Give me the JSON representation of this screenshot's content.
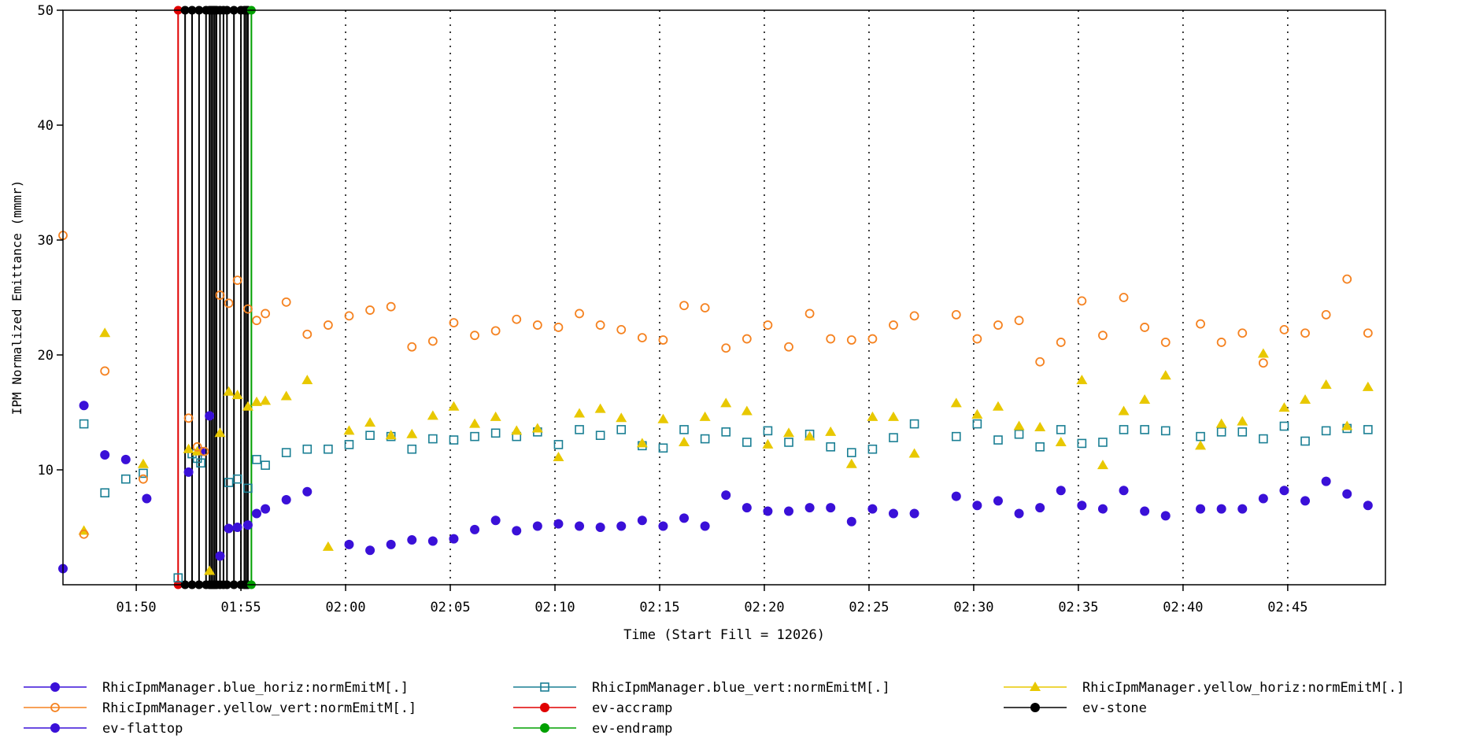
{
  "chart_data": {
    "type": "scatter",
    "ylabel": "IPM Normalized Emittance (mmmr)",
    "xlabel": "Time (Start Fill = 12026)",
    "ylim": [
      0,
      50
    ],
    "xlim": [
      "01:46:30",
      "02:49:40"
    ],
    "yticks": [
      10,
      20,
      30,
      40,
      50
    ],
    "xticks": [
      "01:50",
      "01:55",
      "02:00",
      "02:05",
      "02:10",
      "02:15",
      "02:20",
      "02:25",
      "02:30",
      "02:35",
      "02:40",
      "02:45"
    ],
    "grid": "vertical dotted",
    "legend_position": "bottom",
    "series": [
      {
        "name": "RhicIpmManager.blue_horiz:normEmitM[.]",
        "color": "#3a10d8",
        "marker": "filled-circle",
        "points": [
          [
            "01:46:30",
            1.4
          ],
          [
            "01:47:30",
            15.6
          ],
          [
            "01:48:30",
            11.3
          ],
          [
            "01:49:30",
            10.9
          ],
          [
            "01:50:30",
            7.5
          ],
          [
            "01:52:30",
            9.8
          ],
          [
            "01:53:05",
            11.6
          ],
          [
            "01:53:30",
            14.7
          ],
          [
            "01:54:00",
            2.5
          ],
          [
            "01:54:25",
            4.9
          ],
          [
            "01:54:50",
            5.0
          ],
          [
            "01:55:20",
            5.2
          ],
          [
            "01:55:45",
            6.2
          ],
          [
            "01:56:10",
            6.6
          ],
          [
            "01:57:10",
            7.4
          ],
          [
            "01:58:10",
            8.1
          ],
          [
            "02:00:10",
            3.5
          ],
          [
            "02:01:10",
            3.0
          ],
          [
            "02:02:10",
            3.5
          ],
          [
            "02:03:10",
            3.9
          ],
          [
            "02:04:10",
            3.8
          ],
          [
            "02:05:10",
            4.0
          ],
          [
            "02:06:10",
            4.8
          ],
          [
            "02:07:10",
            5.6
          ],
          [
            "02:08:10",
            4.7
          ],
          [
            "02:09:10",
            5.1
          ],
          [
            "02:10:10",
            5.3
          ],
          [
            "02:11:10",
            5.1
          ],
          [
            "02:12:10",
            5.0
          ],
          [
            "02:13:10",
            5.1
          ],
          [
            "02:14:10",
            5.6
          ],
          [
            "02:15:10",
            5.1
          ],
          [
            "02:16:10",
            5.8
          ],
          [
            "02:17:10",
            5.1
          ],
          [
            "02:18:10",
            7.8
          ],
          [
            "02:19:10",
            6.7
          ],
          [
            "02:20:10",
            6.4
          ],
          [
            "02:21:10",
            6.4
          ],
          [
            "02:22:10",
            6.7
          ],
          [
            "02:23:10",
            6.7
          ],
          [
            "02:24:10",
            5.5
          ],
          [
            "02:25:10",
            6.6
          ],
          [
            "02:26:10",
            6.2
          ],
          [
            "02:27:10",
            6.2
          ],
          [
            "02:29:10",
            7.7
          ],
          [
            "02:30:10",
            6.9
          ],
          [
            "02:31:10",
            7.3
          ],
          [
            "02:32:10",
            6.2
          ],
          [
            "02:33:10",
            6.7
          ],
          [
            "02:34:10",
            8.2
          ],
          [
            "02:35:10",
            6.9
          ],
          [
            "02:36:10",
            6.6
          ],
          [
            "02:37:10",
            8.2
          ],
          [
            "02:38:10",
            6.4
          ],
          [
            "02:39:10",
            6.0
          ],
          [
            "02:40:50",
            6.6
          ],
          [
            "02:41:50",
            6.6
          ],
          [
            "02:42:50",
            6.6
          ],
          [
            "02:43:50",
            7.5
          ],
          [
            "02:44:50",
            8.2
          ],
          [
            "02:45:50",
            7.3
          ],
          [
            "02:46:50",
            9.0
          ],
          [
            "02:47:50",
            7.9
          ],
          [
            "02:48:50",
            6.9
          ]
        ]
      },
      {
        "name": "RhicIpmManager.blue_vert:normEmitM[.]",
        "color": "#1a7f94",
        "marker": "open-square",
        "points": [
          [
            "01:47:30",
            14.0
          ],
          [
            "01:48:30",
            8.0
          ],
          [
            "01:49:30",
            9.2
          ],
          [
            "01:50:20",
            9.7
          ],
          [
            "01:52:00",
            0.6
          ],
          [
            "01:52:40",
            11.4
          ],
          [
            "01:52:55",
            11.0
          ],
          [
            "01:53:05",
            10.6
          ],
          [
            "01:54:25",
            8.9
          ],
          [
            "01:54:50",
            9.2
          ],
          [
            "01:55:20",
            8.4
          ],
          [
            "01:55:45",
            10.9
          ],
          [
            "01:56:10",
            10.4
          ],
          [
            "01:57:10",
            11.5
          ],
          [
            "01:58:10",
            11.8
          ],
          [
            "01:59:10",
            11.8
          ],
          [
            "02:00:10",
            12.2
          ],
          [
            "02:01:10",
            13.0
          ],
          [
            "02:02:10",
            12.9
          ],
          [
            "02:03:10",
            11.8
          ],
          [
            "02:04:10",
            12.7
          ],
          [
            "02:05:10",
            12.6
          ],
          [
            "02:06:10",
            12.9
          ],
          [
            "02:07:10",
            13.2
          ],
          [
            "02:08:10",
            12.9
          ],
          [
            "02:09:10",
            13.3
          ],
          [
            "02:10:10",
            12.2
          ],
          [
            "02:11:10",
            13.5
          ],
          [
            "02:12:10",
            13.0
          ],
          [
            "02:13:10",
            13.5
          ],
          [
            "02:14:10",
            12.1
          ],
          [
            "02:15:10",
            11.9
          ],
          [
            "02:16:10",
            13.5
          ],
          [
            "02:17:10",
            12.7
          ],
          [
            "02:18:10",
            13.3
          ],
          [
            "02:19:10",
            12.4
          ],
          [
            "02:20:10",
            13.4
          ],
          [
            "02:21:10",
            12.4
          ],
          [
            "02:22:10",
            13.1
          ],
          [
            "02:23:10",
            12.0
          ],
          [
            "02:24:10",
            11.5
          ],
          [
            "02:25:10",
            11.8
          ],
          [
            "02:26:10",
            12.8
          ],
          [
            "02:27:10",
            14.0
          ],
          [
            "02:29:10",
            12.9
          ],
          [
            "02:30:10",
            14.0
          ],
          [
            "02:31:10",
            12.6
          ],
          [
            "02:32:10",
            13.1
          ],
          [
            "02:33:10",
            12.0
          ],
          [
            "02:34:10",
            13.5
          ],
          [
            "02:35:10",
            12.3
          ],
          [
            "02:36:10",
            12.4
          ],
          [
            "02:37:10",
            13.5
          ],
          [
            "02:38:10",
            13.5
          ],
          [
            "02:39:10",
            13.4
          ],
          [
            "02:40:50",
            12.9
          ],
          [
            "02:41:50",
            13.3
          ],
          [
            "02:42:50",
            13.3
          ],
          [
            "02:43:50",
            12.7
          ],
          [
            "02:44:50",
            13.8
          ],
          [
            "02:45:50",
            12.5
          ],
          [
            "02:46:50",
            13.4
          ],
          [
            "02:47:50",
            13.6
          ],
          [
            "02:48:50",
            13.5
          ]
        ]
      },
      {
        "name": "RhicIpmManager.yellow_horiz:normEmitM[.]",
        "color": "#e8c800",
        "marker": "filled-triangle",
        "points": [
          [
            "01:47:30",
            4.7
          ],
          [
            "01:48:30",
            21.9
          ],
          [
            "01:50:20",
            10.5
          ],
          [
            "01:52:30",
            11.8
          ],
          [
            "01:52:55",
            11.6
          ],
          [
            "01:53:30",
            1.2
          ],
          [
            "01:54:00",
            13.2
          ],
          [
            "01:54:25",
            16.8
          ],
          [
            "01:54:50",
            16.5
          ],
          [
            "01:55:20",
            15.5
          ],
          [
            "01:55:45",
            15.9
          ],
          [
            "01:56:10",
            16.0
          ],
          [
            "01:57:10",
            16.4
          ],
          [
            "01:58:10",
            17.8
          ],
          [
            "01:59:10",
            3.3
          ],
          [
            "02:00:10",
            13.4
          ],
          [
            "02:01:10",
            14.1
          ],
          [
            "02:02:10",
            13.0
          ],
          [
            "02:03:10",
            13.1
          ],
          [
            "02:04:10",
            14.7
          ],
          [
            "02:05:10",
            15.5
          ],
          [
            "02:06:10",
            14.0
          ],
          [
            "02:07:10",
            14.6
          ],
          [
            "02:08:10",
            13.4
          ],
          [
            "02:09:10",
            13.6
          ],
          [
            "02:10:10",
            11.1
          ],
          [
            "02:11:10",
            14.9
          ],
          [
            "02:12:10",
            15.3
          ],
          [
            "02:13:10",
            14.5
          ],
          [
            "02:14:10",
            12.3
          ],
          [
            "02:15:10",
            14.4
          ],
          [
            "02:16:10",
            12.4
          ],
          [
            "02:17:10",
            14.6
          ],
          [
            "02:18:10",
            15.8
          ],
          [
            "02:19:10",
            15.1
          ],
          [
            "02:20:10",
            12.2
          ],
          [
            "02:21:10",
            13.2
          ],
          [
            "02:22:10",
            12.9
          ],
          [
            "02:23:10",
            13.3
          ],
          [
            "02:24:10",
            10.5
          ],
          [
            "02:25:10",
            14.6
          ],
          [
            "02:26:10",
            14.6
          ],
          [
            "02:27:10",
            11.4
          ],
          [
            "02:29:10",
            15.8
          ],
          [
            "02:30:10",
            14.8
          ],
          [
            "02:31:10",
            15.5
          ],
          [
            "02:32:10",
            13.8
          ],
          [
            "02:33:10",
            13.7
          ],
          [
            "02:34:10",
            12.4
          ],
          [
            "02:35:10",
            17.8
          ],
          [
            "02:36:10",
            10.4
          ],
          [
            "02:37:10",
            15.1
          ],
          [
            "02:38:10",
            16.1
          ],
          [
            "02:39:10",
            18.2
          ],
          [
            "02:40:50",
            12.1
          ],
          [
            "02:41:50",
            14.0
          ],
          [
            "02:42:50",
            14.2
          ],
          [
            "02:43:50",
            20.1
          ],
          [
            "02:44:50",
            15.4
          ],
          [
            "02:45:50",
            16.1
          ],
          [
            "02:46:50",
            17.4
          ],
          [
            "02:47:50",
            13.8
          ],
          [
            "02:48:50",
            17.2
          ]
        ]
      },
      {
        "name": "RhicIpmManager.yellow_vert:normEmitM[.]",
        "color": "#f58220",
        "marker": "open-circle",
        "points": [
          [
            "01:46:30",
            30.4
          ],
          [
            "01:47:30",
            4.4
          ],
          [
            "01:48:30",
            18.6
          ],
          [
            "01:50:20",
            9.2
          ],
          [
            "01:52:30",
            14.5
          ],
          [
            "01:52:55",
            12.0
          ],
          [
            "01:53:15",
            11.6
          ],
          [
            "01:54:00",
            25.2
          ],
          [
            "01:54:25",
            24.5
          ],
          [
            "01:54:50",
            26.5
          ],
          [
            "01:55:20",
            24.0
          ],
          [
            "01:55:45",
            23.0
          ],
          [
            "01:56:10",
            23.6
          ],
          [
            "01:57:10",
            24.6
          ],
          [
            "01:58:10",
            21.8
          ],
          [
            "01:59:10",
            22.6
          ],
          [
            "02:00:10",
            23.4
          ],
          [
            "02:01:10",
            23.9
          ],
          [
            "02:02:10",
            24.2
          ],
          [
            "02:03:10",
            20.7
          ],
          [
            "02:04:10",
            21.2
          ],
          [
            "02:05:10",
            22.8
          ],
          [
            "02:06:10",
            21.7
          ],
          [
            "02:07:10",
            22.1
          ],
          [
            "02:08:10",
            23.1
          ],
          [
            "02:09:10",
            22.6
          ],
          [
            "02:10:10",
            22.4
          ],
          [
            "02:11:10",
            23.6
          ],
          [
            "02:12:10",
            22.6
          ],
          [
            "02:13:10",
            22.2
          ],
          [
            "02:14:10",
            21.5
          ],
          [
            "02:15:10",
            21.3
          ],
          [
            "02:16:10",
            24.3
          ],
          [
            "02:17:10",
            24.1
          ],
          [
            "02:18:10",
            20.6
          ],
          [
            "02:19:10",
            21.4
          ],
          [
            "02:20:10",
            22.6
          ],
          [
            "02:21:10",
            20.7
          ],
          [
            "02:22:10",
            23.6
          ],
          [
            "02:23:10",
            21.4
          ],
          [
            "02:24:10",
            21.3
          ],
          [
            "02:25:10",
            21.4
          ],
          [
            "02:26:10",
            22.6
          ],
          [
            "02:27:10",
            23.4
          ],
          [
            "02:29:10",
            23.5
          ],
          [
            "02:30:10",
            21.4
          ],
          [
            "02:31:10",
            22.6
          ],
          [
            "02:32:10",
            23.0
          ],
          [
            "02:33:10",
            19.4
          ],
          [
            "02:34:10",
            21.1
          ],
          [
            "02:35:10",
            24.7
          ],
          [
            "02:36:10",
            21.7
          ],
          [
            "02:37:10",
            25.0
          ],
          [
            "02:38:10",
            22.4
          ],
          [
            "02:39:10",
            21.1
          ],
          [
            "02:40:50",
            22.7
          ],
          [
            "02:41:50",
            21.1
          ],
          [
            "02:42:50",
            21.9
          ],
          [
            "02:43:50",
            19.3
          ],
          [
            "02:44:50",
            22.2
          ],
          [
            "02:45:50",
            21.9
          ],
          [
            "02:46:50",
            23.5
          ],
          [
            "02:47:50",
            26.6
          ],
          [
            "02:48:50",
            21.9
          ]
        ]
      }
    ],
    "events": [
      {
        "name": "ev-accramp",
        "color": "#e00000",
        "times": [
          "01:52:00"
        ]
      },
      {
        "name": "ev-stone",
        "color": "#000000",
        "times": [
          "01:52:20",
          "01:52:40",
          "01:53:00",
          "01:53:20",
          "01:53:30",
          "01:53:35",
          "01:53:40",
          "01:53:45",
          "01:53:50",
          "01:54:00",
          "01:54:10",
          "01:54:20",
          "01:54:40",
          "01:55:00",
          "01:55:10",
          "01:55:15",
          "01:55:20"
        ]
      },
      {
        "name": "ev-endramp",
        "color": "#00a000",
        "times": [
          "01:55:30"
        ]
      },
      {
        "name": "ev-flattop",
        "color": "#3a10d8",
        "times": []
      }
    ],
    "legend": [
      {
        "label": "RhicIpmManager.blue_horiz:normEmitM[.]",
        "color": "#3a10d8",
        "marker": "filled-circle"
      },
      {
        "label": "RhicIpmManager.blue_vert:normEmitM[.]",
        "color": "#1a7f94",
        "marker": "open-square"
      },
      {
        "label": "RhicIpmManager.yellow_horiz:normEmitM[.]",
        "color": "#e8c800",
        "marker": "filled-triangle"
      },
      {
        "label": "RhicIpmManager.yellow_vert:normEmitM[.]",
        "color": "#f58220",
        "marker": "open-circle"
      },
      {
        "label": "ev-accramp",
        "color": "#e00000",
        "marker": "filled-circle"
      },
      {
        "label": "ev-stone",
        "color": "#000000",
        "marker": "filled-circle"
      },
      {
        "label": "ev-flattop",
        "color": "#3a10d8",
        "marker": "filled-circle"
      },
      {
        "label": "ev-endramp",
        "color": "#00a000",
        "marker": "filled-circle"
      }
    ]
  }
}
